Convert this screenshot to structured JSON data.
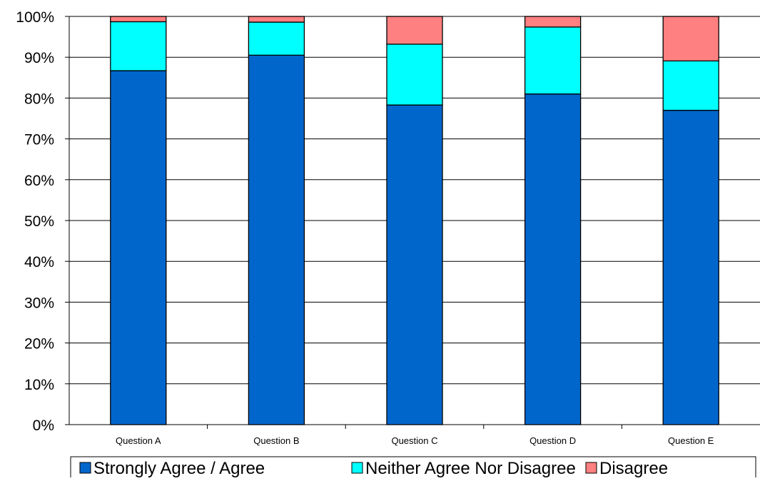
{
  "chart_data": {
    "type": "bar",
    "stacked": true,
    "title": "",
    "xlabel": "",
    "ylabel": "",
    "ylim": [
      0,
      100
    ],
    "y_ticks": [
      "0%",
      "10%",
      "20%",
      "30%",
      "40%",
      "50%",
      "60%",
      "70%",
      "80%",
      "90%",
      "100%"
    ],
    "grid": true,
    "legend_position": "bottom",
    "categories": [
      "Question A",
      "Question B",
      "Question C",
      "Question D",
      "Question E"
    ],
    "series": [
      {
        "name": "Strongly Agree / Agree",
        "color": "#0066CC",
        "values": [
          86.7,
          90.5,
          78.3,
          81.0,
          77.0
        ]
      },
      {
        "name": "Neither Agree Nor Disagree",
        "color": "#00FFFF",
        "values": [
          12.0,
          8.1,
          14.9,
          16.4,
          12.1
        ]
      },
      {
        "name": "Disagree",
        "color": "#FF8080",
        "values": [
          1.3,
          1.4,
          6.8,
          2.6,
          10.9
        ]
      }
    ]
  }
}
